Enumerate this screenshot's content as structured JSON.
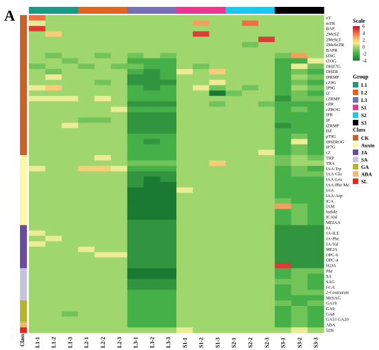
{
  "panel_letter": "A",
  "class_axis_label": "Class",
  "chart_data": {
    "type": "heatmap",
    "columns": [
      "L1-1",
      "L1-2",
      "L1-3",
      "L2-1",
      "L2-2",
      "L2-3",
      "L3-1",
      "L3-2",
      "L3-3",
      "S1-1",
      "S1-2",
      "S1-3",
      "S2-1",
      "S2-2",
      "S2-3",
      "S3-1",
      "S3-2",
      "S3-3"
    ],
    "rows": [
      "oT",
      "mTR",
      "BAP",
      "2MeSZ",
      "2MeScZ",
      "2MeScZR",
      "BAPR",
      "tZ9G",
      "tZOG",
      "DHZ7G",
      "DHZR",
      "IPRMP",
      "cZ9G",
      "IP9G",
      "tZ",
      "cZRMP",
      "cZR",
      "cZROG",
      "IPR",
      "IP",
      "tZRMP",
      "DZ",
      "pT9G",
      "DHZROG",
      "IP7G",
      "cZ",
      "TRP",
      "TRA",
      "IAA-Trp",
      "IAA-Glu",
      "IAA-Leu",
      "IAA-Phe-Me",
      "IAA",
      "IAA-Asp",
      "ICA",
      "IAM",
      "Indole",
      "ICAld",
      "MEIAA",
      "JA",
      "JA-ILE",
      "JA-Phe",
      "JA-Val",
      "MEJA",
      "OPC-6",
      "OPC-4",
      "H2JA",
      "Phe",
      "SA",
      "SAG",
      "t-CA",
      "2-Coumarate",
      "MeSAG",
      "GA19",
      "GA9",
      "GA8",
      "GA53 GA20",
      "ABA",
      "5DS"
    ],
    "row_classes": [
      "CK",
      "CK",
      "CK",
      "CK",
      "CK",
      "CK",
      "CK",
      "CK",
      "CK",
      "CK",
      "CK",
      "CK",
      "CK",
      "CK",
      "CK",
      "CK",
      "CK",
      "CK",
      "CK",
      "CK",
      "CK",
      "CK",
      "CK",
      "CK",
      "CK",
      "CK",
      "Auxin",
      "Auxin",
      "Auxin",
      "Auxin",
      "Auxin",
      "Auxin",
      "Auxin",
      "Auxin",
      "Auxin",
      "Auxin",
      "Auxin",
      "Auxin",
      "Auxin",
      "JA",
      "JA",
      "JA",
      "JA",
      "JA",
      "JA",
      "JA",
      "JA",
      "SA",
      "SA",
      "SA",
      "SA",
      "SA",
      "SA",
      "GA",
      "GA",
      "GA",
      "GA",
      "ABA",
      "SL"
    ],
    "column_groups": [
      "L1",
      "L1",
      "L1",
      "L2",
      "L2",
      "L2",
      "L3",
      "L3",
      "L3",
      "S1",
      "S1",
      "S1",
      "S2",
      "S2",
      "S2",
      "S3",
      "S3",
      "S3"
    ],
    "scale": {
      "title": "Scale",
      "min": -4,
      "max": 6,
      "ticks": [
        6,
        4,
        2,
        0,
        -2,
        -4
      ]
    },
    "group_legend": {
      "title": "Group",
      "items": [
        {
          "name": "L1",
          "color": "#1a9a82"
        },
        {
          "name": "L2",
          "color": "#e0641f"
        },
        {
          "name": "L3",
          "color": "#7570b3"
        },
        {
          "name": "S1",
          "color": "#e8388e"
        },
        {
          "name": "S2",
          "color": "#19c8ec"
        },
        {
          "name": "S3",
          "color": "#000000"
        }
      ]
    },
    "class_legend": {
      "title": "Class",
      "items": [
        {
          "name": "CK",
          "color": "#c8612b"
        },
        {
          "name": "Auxin",
          "color": "#fbf8a6"
        },
        {
          "name": "JA",
          "color": "#6a4b9e"
        },
        {
          "name": "SA",
          "color": "#c5c3df"
        },
        {
          "name": "GA",
          "color": "#b5b52a"
        },
        {
          "name": "ABA",
          "color": "#f5b770"
        },
        {
          "name": "SL",
          "color": "#e8261f"
        }
      ]
    },
    "values": [
      [
        4,
        0,
        0,
        0,
        0,
        0,
        0,
        0,
        0,
        0,
        0,
        0,
        0,
        0,
        0,
        0,
        0,
        0
      ],
      [
        1,
        0,
        0,
        0,
        0,
        0,
        0,
        0,
        0,
        0,
        3,
        0,
        0,
        4,
        0,
        0,
        0,
        0
      ],
      [
        5,
        0,
        0,
        0,
        0,
        0,
        0,
        0,
        0,
        0,
        0,
        0,
        0,
        0,
        0,
        0,
        0,
        0
      ],
      [
        0,
        2,
        0,
        0,
        0,
        0,
        0,
        0,
        0,
        0,
        5,
        0,
        0,
        0,
        0,
        0,
        0,
        0
      ],
      [
        0,
        0,
        0,
        0,
        0,
        0,
        0,
        0,
        0,
        0,
        0,
        0,
        0,
        0,
        5,
        0,
        0,
        0
      ],
      [
        0,
        0,
        0,
        0,
        0,
        0,
        0,
        0,
        0,
        0,
        0,
        0,
        0,
        -1,
        0,
        0,
        0,
        0
      ],
      [
        0,
        0,
        0,
        0,
        0,
        0,
        0,
        0,
        0,
        0,
        0,
        0,
        0,
        0,
        0,
        0,
        0,
        0
      ],
      [
        0,
        -1,
        0,
        0,
        -1,
        0,
        -1,
        0,
        -1,
        0,
        0,
        0,
        0,
        0,
        0,
        -1,
        3,
        0
      ],
      [
        0,
        0,
        -1,
        0,
        0,
        0,
        -2,
        -2,
        -2,
        0,
        0,
        0,
        0,
        0,
        0,
        -2,
        -2,
        1
      ],
      [
        -1,
        0,
        0,
        -1,
        0,
        -1,
        -1,
        -2,
        -2,
        0,
        -1,
        0,
        0,
        0,
        0,
        -2,
        1,
        -1
      ],
      [
        0,
        -1,
        0,
        0,
        0,
        0,
        -2,
        -3,
        -2,
        1,
        0,
        2,
        0,
        0,
        0,
        -2,
        -1,
        -2
      ],
      [
        0,
        1,
        0,
        0,
        0,
        0,
        -3,
        -3,
        -2,
        0,
        0,
        0,
        0,
        0,
        0,
        -2,
        0,
        -1
      ],
      [
        0,
        0,
        0,
        0,
        -1,
        0,
        -3,
        -3,
        -3,
        0,
        0,
        1,
        0,
        0,
        0,
        -2,
        -1,
        -2
      ],
      [
        1,
        2,
        0,
        0,
        0,
        0,
        -2,
        -3,
        -2,
        0,
        1,
        -1,
        0,
        -1,
        0,
        -2,
        0,
        -1
      ],
      [
        0,
        0,
        0,
        0,
        0,
        0,
        -2,
        -2,
        -2,
        0,
        0,
        -4,
        -1,
        0,
        0,
        -2,
        -1,
        -2
      ],
      [
        1,
        1,
        1,
        0,
        1,
        0,
        -2,
        -2,
        -2,
        0,
        0,
        0,
        0,
        0,
        0,
        -3,
        -1,
        -1
      ],
      [
        0,
        0,
        0,
        0,
        0,
        0,
        -3,
        -3,
        -3,
        0,
        0,
        -1,
        0,
        0,
        -1,
        -2,
        -2,
        -2
      ],
      [
        0,
        0,
        0,
        0,
        0,
        1,
        -2,
        -2,
        -2,
        0,
        0,
        0,
        0,
        0,
        0,
        -2,
        -1,
        -2
      ],
      [
        0,
        0,
        0,
        0,
        0,
        0,
        -3,
        -3,
        -3,
        0,
        0,
        0,
        0,
        0,
        0,
        -2,
        -2,
        -2
      ],
      [
        0,
        0,
        0,
        -1,
        -1,
        0,
        -3,
        -3,
        -3,
        0,
        0,
        0,
        0,
        0,
        0,
        -2,
        -2,
        -2
      ],
      [
        0,
        0,
        1,
        0,
        0,
        0,
        -3,
        -3,
        -3,
        0,
        0,
        0,
        0,
        0,
        0,
        -3,
        -2,
        -2
      ],
      [
        0,
        0,
        0,
        0,
        0,
        0,
        -3,
        -3,
        -3,
        0,
        0,
        0,
        0,
        0,
        0,
        -2,
        -2,
        -2
      ],
      [
        0,
        0,
        0,
        0,
        0,
        0,
        -2,
        -2,
        -2,
        0,
        0,
        0,
        0,
        0,
        0,
        -2,
        -1,
        -2
      ],
      [
        0,
        0,
        0,
        0,
        0,
        0,
        -2,
        -3,
        -2,
        0,
        0,
        0,
        0,
        0,
        0,
        -2,
        1,
        -2
      ],
      [
        0,
        0,
        0,
        0,
        0,
        0,
        -2,
        -2,
        -2,
        0,
        0,
        0,
        0,
        0,
        0,
        -2,
        -1,
        -2
      ],
      [
        0,
        0,
        0,
        0,
        0,
        0,
        -2,
        -2,
        -2,
        0,
        0,
        0,
        0,
        0,
        1,
        -2,
        -1,
        -2
      ],
      [
        0,
        0,
        0,
        0,
        1,
        0,
        -2,
        -2,
        -2,
        0,
        0,
        0,
        0,
        0,
        0,
        -1,
        0,
        -1
      ],
      [
        0,
        0,
        0,
        0,
        0,
        0,
        -1,
        -1,
        -1,
        0,
        0,
        2,
        0,
        0,
        0,
        -1,
        0,
        0
      ],
      [
        1,
        0,
        0,
        2,
        2,
        1,
        -2,
        -2,
        -2,
        0,
        0,
        0,
        0,
        0,
        0,
        -2,
        -1,
        -2
      ],
      [
        0,
        0,
        0,
        0,
        0,
        0,
        -3,
        -3,
        -3,
        0,
        0,
        0,
        0,
        0,
        0,
        -2,
        -1,
        -1
      ],
      [
        0,
        0,
        0,
        0,
        0,
        0,
        -3,
        -4,
        -3,
        0,
        0,
        0,
        0,
        0,
        0,
        -2,
        -2,
        -2
      ],
      [
        0,
        0,
        0,
        0,
        0,
        0,
        -3,
        -4,
        -4,
        0,
        0,
        0,
        0,
        0,
        0,
        -2,
        -2,
        -2
      ],
      [
        0,
        0,
        0,
        0,
        0,
        0,
        -4,
        -4,
        -4,
        1,
        0,
        0,
        0,
        0,
        0,
        -2,
        -2,
        -2
      ],
      [
        0,
        0,
        0,
        0,
        0,
        0,
        -4,
        -4,
        -4,
        0,
        0,
        0,
        0,
        0,
        0,
        -2,
        -2,
        -2
      ],
      [
        0,
        0,
        0,
        0,
        0,
        0,
        -4,
        -4,
        -4,
        0,
        0,
        0,
        0,
        0,
        0,
        -1,
        -2,
        -2
      ],
      [
        0,
        0,
        0,
        0,
        0,
        0,
        -4,
        -4,
        -4,
        0,
        0,
        0,
        0,
        0,
        0,
        3,
        -1,
        -2
      ],
      [
        0,
        0,
        0,
        0,
        0,
        0,
        -4,
        -4,
        -4,
        0,
        0,
        0,
        0,
        0,
        0,
        -2,
        -1,
        -2
      ],
      [
        0,
        0,
        0,
        0,
        0,
        0,
        -4,
        -4,
        -4,
        0,
        0,
        0,
        0,
        0,
        0,
        -2,
        -1,
        -2
      ],
      [
        0,
        0,
        0,
        0,
        0,
        0,
        -3,
        -3,
        -3,
        0,
        0,
        0,
        0,
        0,
        0,
        -2,
        -1,
        -2
      ],
      [
        0,
        0,
        0,
        0,
        0,
        0,
        -3,
        -3,
        -3,
        0,
        0,
        0,
        0,
        0,
        0,
        -3,
        -3,
        -3
      ],
      [
        1,
        0,
        0,
        0,
        0,
        0,
        -3,
        -3,
        -3,
        0,
        0,
        0,
        0,
        0,
        0,
        -3,
        -3,
        -3
      ],
      [
        0,
        1,
        0,
        0,
        0,
        0,
        -3,
        -3,
        -3,
        0,
        0,
        0,
        0,
        0,
        0,
        -3,
        -3,
        -3
      ],
      [
        1,
        0,
        0,
        0,
        0,
        0,
        -3,
        -3,
        -3,
        0,
        0,
        0,
        0,
        0,
        0,
        -3,
        -3,
        -3
      ],
      [
        0,
        0,
        0,
        1,
        0,
        0,
        -3,
        -3,
        -3,
        0,
        0,
        0,
        0,
        0,
        0,
        -3,
        -3,
        -3
      ],
      [
        0,
        0,
        0,
        0,
        1,
        1,
        -3,
        -3,
        -3,
        0,
        0,
        0,
        0,
        0,
        0,
        -3,
        -3,
        -3
      ],
      [
        0,
        0,
        0,
        0,
        0,
        0,
        -3,
        -3,
        -3,
        0,
        0,
        0,
        0,
        0,
        0,
        -3,
        -3,
        -3
      ],
      [
        0,
        0,
        0,
        0,
        0,
        0,
        -3,
        -3,
        -3,
        0,
        0,
        0,
        0,
        0,
        0,
        5,
        -3,
        -3
      ],
      [
        0,
        0,
        0,
        0,
        0,
        0,
        -4,
        -4,
        -4,
        0,
        0,
        0,
        0,
        0,
        0,
        -2,
        -1,
        -1
      ],
      [
        0,
        0,
        0,
        0,
        0,
        0,
        -4,
        -4,
        -4,
        0,
        0,
        0,
        0,
        0,
        0,
        -2,
        -1,
        -2
      ],
      [
        0,
        0,
        0,
        0,
        0,
        0,
        -3,
        -3,
        -3,
        0,
        0,
        0,
        0,
        0,
        0,
        -1,
        -1,
        -2
      ],
      [
        0,
        0,
        0,
        0,
        0,
        0,
        -3,
        -3,
        -3,
        0,
        0,
        0,
        0,
        0,
        0,
        -2,
        -1,
        -2
      ],
      [
        0,
        0,
        0,
        0,
        0,
        0,
        -2,
        -2,
        -2,
        0,
        0,
        0,
        0,
        0,
        0,
        -2,
        -1,
        -1
      ],
      [
        0,
        0,
        0,
        0,
        0,
        0,
        -2,
        -2,
        -2,
        0,
        0,
        0,
        0,
        0,
        0,
        -2,
        -2,
        -2
      ],
      [
        0,
        0,
        0,
        0,
        0,
        0,
        -2,
        -2,
        -2,
        0,
        0,
        0,
        0,
        0,
        0,
        -1,
        -2,
        -1
      ],
      [
        0,
        0,
        0,
        0,
        0,
        0,
        -2,
        -2,
        -2,
        0,
        0,
        0,
        0,
        0,
        0,
        -2,
        -1,
        -2
      ],
      [
        0,
        0,
        -1,
        0,
        0,
        0,
        -2,
        -2,
        -2,
        0,
        0,
        0,
        0,
        0,
        0,
        -2,
        -1,
        -2
      ],
      [
        0,
        0,
        0,
        0,
        0,
        0,
        -2,
        -2,
        -2,
        0,
        0,
        0,
        0,
        0,
        0,
        -2,
        -1,
        -2
      ],
      [
        0,
        0,
        0,
        0,
        0,
        0,
        -2,
        -2,
        -2,
        0,
        0,
        0,
        0,
        0,
        0,
        -2,
        -1,
        -2
      ],
      [
        0,
        0,
        0,
        0,
        0,
        0,
        0,
        0,
        0,
        1,
        0,
        0,
        0,
        0,
        0,
        0,
        1,
        0
      ]
    ]
  }
}
